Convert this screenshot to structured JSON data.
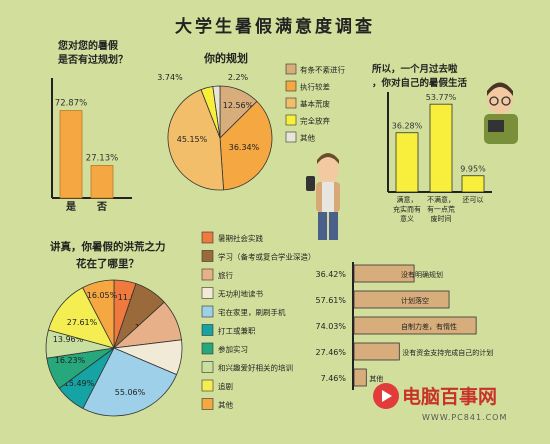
{
  "title": "大学生暑假满意度调查",
  "watermark": {
    "brand": "电脑百事网",
    "url": "WWW.PC841.COM"
  },
  "chart_data": [
    {
      "type": "bar",
      "question": "您对您的暑假是否有过规划？",
      "categories": [
        "是",
        "否"
      ],
      "values": [
        72.87,
        27.13
      ],
      "labels": [
        "72.87%",
        "27.13%"
      ],
      "ylim": [
        0,
        100
      ],
      "color": "#f5a742"
    },
    {
      "type": "pie",
      "question": "你的规划",
      "slices": [
        {
          "name": "有条不紊进行",
          "value": 12.56,
          "label": "12.56%",
          "color": "#d8ad7c"
        },
        {
          "name": "执行较差",
          "value": 36.34,
          "label": "36.34%",
          "color": "#f5a742"
        },
        {
          "name": "基本荒废",
          "value": 45.15,
          "label": "45.15%",
          "color": "#f3be6a"
        },
        {
          "name": "完全放弃",
          "value": 3.74,
          "label": "3.74%",
          "color": "#f7ef3c"
        },
        {
          "name": "其他",
          "value": 2.2,
          "label": "2.2%",
          "color": "#e8e6d8"
        }
      ]
    },
    {
      "type": "bar",
      "question": "所以，一个月过去啦，你对自己的暑假生活",
      "categories": [
        "满意，充实而有意义",
        "不满意，有一点荒废时间",
        "还可以"
      ],
      "values": [
        36.28,
        53.77,
        9.95
      ],
      "labels": [
        "36.28%",
        "53.77%",
        "9.95%"
      ],
      "ylim": [
        0,
        60
      ],
      "color": "#f7ef3c"
    },
    {
      "type": "pie",
      "question": "讲真，你暑假的洪荒之力花在了哪里？",
      "slices": [
        {
          "name": "暑期社会实践",
          "value": 11.05,
          "label": "11.05%",
          "color": "#f07a3d"
        },
        {
          "name": "学习（备考或复合学业深造）",
          "value": 16.81,
          "label": "16.81%",
          "color": "#9b6a3a"
        },
        {
          "name": "旅行",
          "value": 20.71,
          "label": "20.71%",
          "color": "#e8b088"
        },
        {
          "name": "无功利地读书",
          "value": 17.5,
          "label": "17.5%",
          "color": "#f1ead6"
        },
        {
          "name": "宅在家里，刷刷手机",
          "value": 55.06,
          "label": "55.06%",
          "color": "#9ed0ea"
        },
        {
          "name": "打工或兼职",
          "value": 15.49,
          "label": "15.49%",
          "color": "#15a3a3"
        },
        {
          "name": "参加实习",
          "value": 16.23,
          "label": "16.23%",
          "color": "#26a77c"
        },
        {
          "name": "和兴趣爱好相关的培训",
          "value": 13.96,
          "label": "13.96%",
          "color": "#c9dfa0"
        },
        {
          "name": "追剧",
          "value": 27.61,
          "label": "27.61%",
          "color": "#f5ee52"
        },
        {
          "name": "其他",
          "value": 16.05,
          "label": "16.05%",
          "color": "#f5a742"
        }
      ]
    },
    {
      "type": "bar",
      "orientation": "horizontal",
      "categories": [
        "没有明确规划",
        "计划落空",
        "自制力差，有惰性",
        "没有资金支持完成自己的计划",
        "其他"
      ],
      "values": [
        36.42,
        57.61,
        74.03,
        27.46,
        7.46
      ],
      "labels": [
        "36.42%",
        "57.61%",
        "74.03%",
        "27.46%",
        "7.46%"
      ],
      "xlim": [
        0,
        100
      ],
      "color": "#d8ad7c"
    }
  ]
}
